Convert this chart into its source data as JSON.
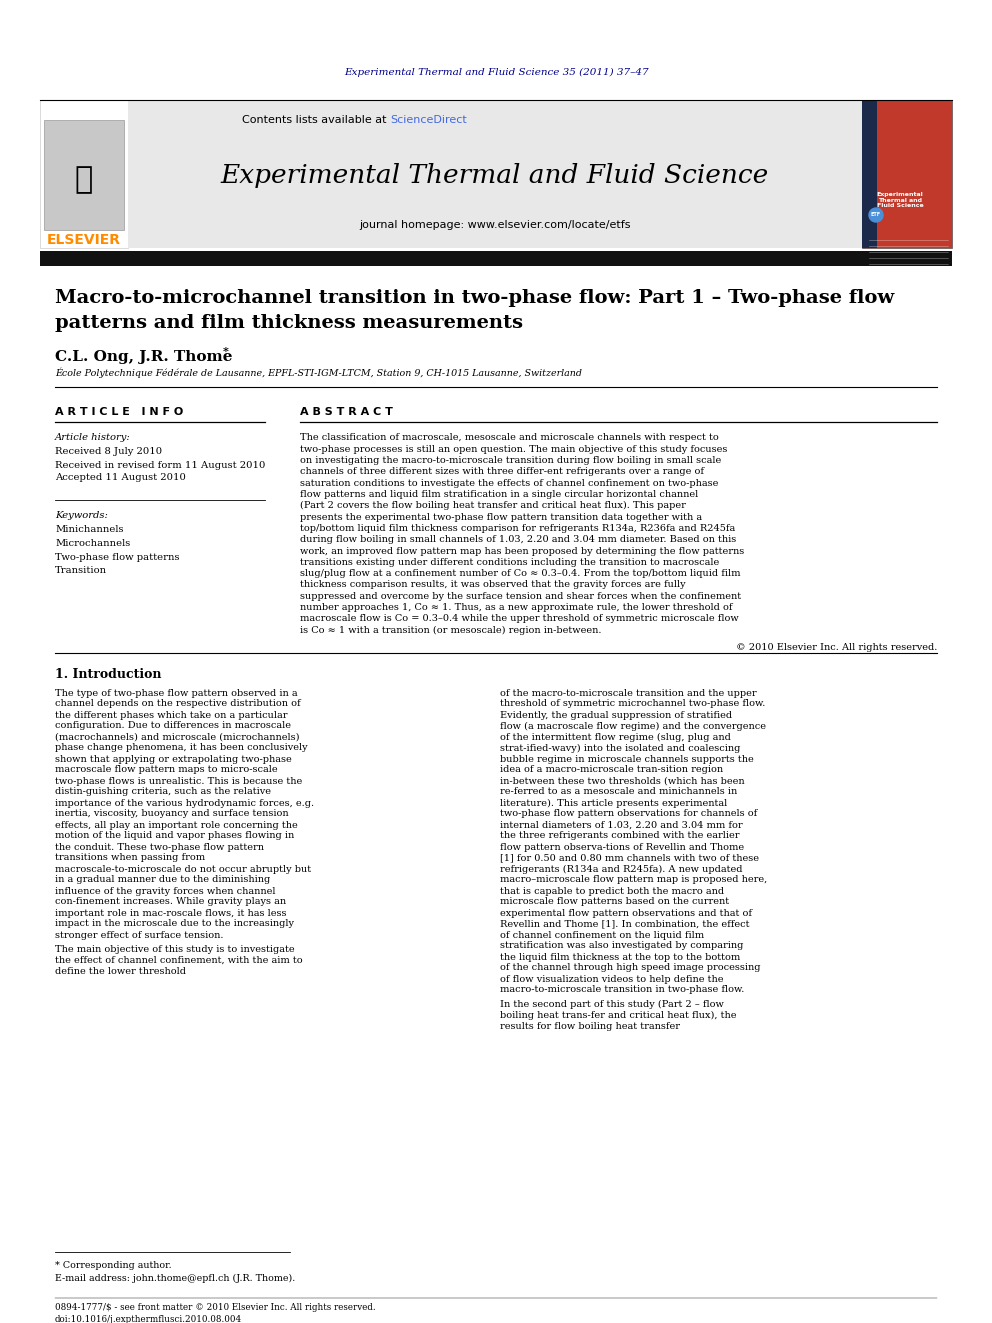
{
  "journal_ref": "Experimental Thermal and Fluid Science 35 (2011) 37–47",
  "journal_ref_color": "#00008B",
  "contents_text": "Contents lists available at ",
  "sciencedirect_text": "ScienceDirect",
  "sciencedirect_color": "#4169E1",
  "journal_name": "Experimental Thermal and Fluid Science",
  "journal_homepage": "journal homepage: www.elsevier.com/locate/etfs",
  "elsevier_color": "#FF8C00",
  "article_title_line1": "Macro-to-microchannel transition in two-phase flow: Part 1 – Two-phase flow",
  "article_title_line2": "patterns and film thickness measurements",
  "authors": "C.L. Ong, J.R. Thome",
  "affiliation": "École Polytechnique Fédérale de Lausanne, EPFL-STI-IGM-LTCM, Station 9, CH-1015 Lausanne, Switzerland",
  "article_info_header": "A R T I C L E   I N F O",
  "article_history_label": "Article history:",
  "received1": "Received 8 July 2010",
  "received2": "Received in revised form 11 August 2010",
  "accepted": "Accepted 11 August 2010",
  "keywords_label": "Keywords:",
  "keywords": [
    "Minichannels",
    "Microchannels",
    "Two-phase flow patterns",
    "Transition"
  ],
  "abstract_header": "A B S T R A C T",
  "abstract_text": "The classification of macroscale, mesoscale and microscale channels with respect to two-phase processes is still an open question. The main objective of this study focuses on investigating the macro-to-microscale transition during flow boiling in small scale channels of three different sizes with three differ-ent refrigerants over a range of saturation conditions to investigate the effects of channel confinement on two-phase flow patterns and liquid film stratification in a single circular horizontal channel (Part 2 covers the flow boiling heat transfer and critical heat flux). This paper presents the experimental two-phase flow pattern transition data together with a top/bottom liquid film thickness comparison for refrigerants R134a, R236fa and R245fa during flow boiling in small channels of 1.03, 2.20 and 3.04 mm diameter. Based on this work, an improved flow pattern map has been proposed by determining the flow patterns transitions existing under different conditions including the transition to macroscale slug/plug flow at a confinement number of Co ≈ 0.3–0.4. From the top/bottom liquid film thickness comparison results, it was observed that the gravity forces are fully suppressed and overcome by the surface tension and shear forces when the confinement number approaches 1, Co ≈ 1. Thus, as a new approximate rule, the lower threshold of macroscale flow is Co = 0.3–0.4 while the upper threshold of symmetric microscale flow is Co ≈ 1 with a transition (or mesoscale) region in-between.",
  "copyright": "© 2010 Elsevier Inc. All rights reserved.",
  "intro_header": "1. Introduction",
  "intro_col1_p1": "The type of two-phase flow pattern observed in a channel depends on the respective distribution of the different phases which take on a particular configuration. Due to differences in macroscale (macrochannels) and microscale (microchannels) phase change phenomena, it has been conclusively shown that applying or extrapolating two-phase macroscale flow pattern maps to micro-scale two-phase flows is unrealistic. This is because the distin-guishing criteria, such as the relative importance of the various hydrodynamic forces, e.g. inertia, viscosity, buoyancy and surface tension effects, all play an important role concerning the motion of the liquid and vapor phases flowing in the conduit. These two-phase flow pattern transitions when passing from macroscale-to-microscale do not occur abruptly but in a gradual manner due to the diminishing influence of the gravity forces when channel con-finement increases. While gravity plays an important role in mac-roscale flows, it has less impact in the microscale due to the increasingly stronger effect of surface tension.",
  "intro_col1_p2": "The main objective of this study is to investigate the effect of channel confinement, with the aim to define the lower threshold",
  "intro_col2_p1": "of the macro-to-microscale transition and the upper threshold of symmetric microchannel two-phase flow. Evidently, the gradual suppression of stratified flow (a macroscale flow regime) and the convergence of the intermittent flow regime (slug, plug and strat-ified-wavy) into the isolated and coalescing bubble regime in microscale channels supports the idea of a macro-microscale tran-sition region in-between these two thresholds (which has been re-ferred to as a mesoscale and minichannels in literature). This article presents experimental two-phase flow pattern observations for channels of internal diameters of 1.03, 2.20 and 3.04 mm for the three refrigerants combined with the earlier flow pattern observa-tions of Revellin and Thome [1] for 0.50 and 0.80 mm channels with two of these refrigerants (R134a and R245fa). A new updated macro–microscale flow pattern map is proposed here, that is capable to predict both the macro and microscale flow patterns based on the current experimental flow pattern observations and that of Revellin and Thome [1]. In combination, the effect of channel confinement on the liquid film stratification was also investigated by comparing the liquid film thickness at the top to the bottom of the channel through high speed image processing of flow visualization videos to help define the macro-to-microscale transition in two-phase flow.",
  "intro_col2_p2": "In the second part of this study (Part 2 – flow boiling heat trans-fer and critical heat flux), the results for flow boiling heat transfer",
  "footnote_star": "* Corresponding author.",
  "footnote_email": "E-mail address: john.thome@epfl.ch (J.R. Thome).",
  "footer1": "0894-1777/$ - see front matter © 2010 Elsevier Inc. All rights reserved.",
  "footer2": "doi:10.1016/j.expthermflusci.2010.08.004",
  "bg_color": "#FFFFFF",
  "text_color": "#000000",
  "header_bg": "#E8E8E8",
  "dark_bar_color": "#1a1a1a"
}
